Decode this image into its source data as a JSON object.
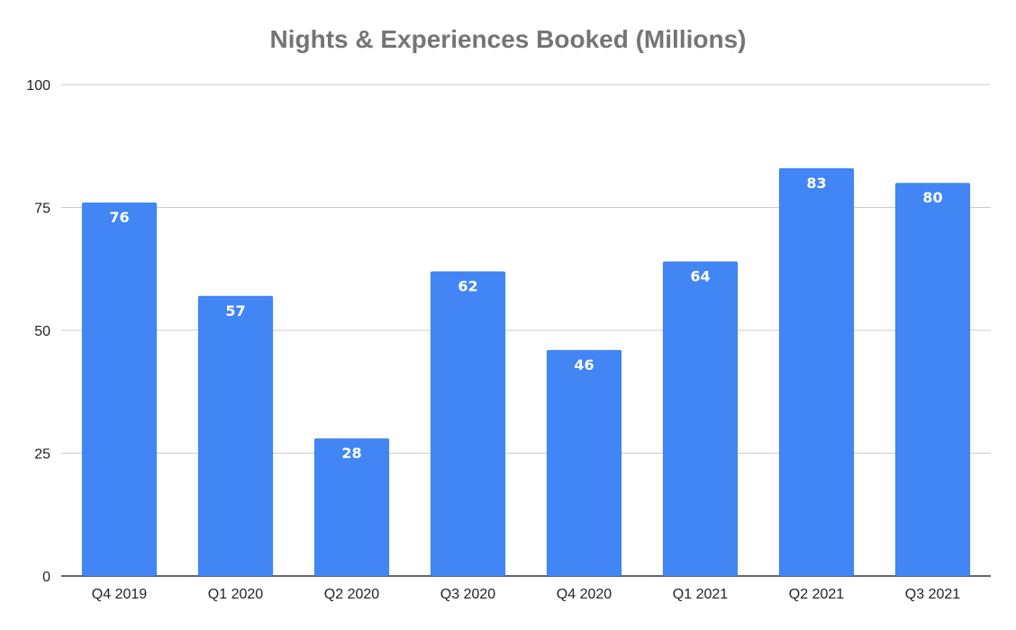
{
  "chart_data": {
    "type": "bar",
    "title": "Nights & Experiences Booked (Millions)",
    "xlabel": "",
    "ylabel": "",
    "categories": [
      "Q4 2019",
      "Q1 2020",
      "Q2 2020",
      "Q3 2020",
      "Q4 2020",
      "Q1 2021",
      "Q2 2021",
      "Q3 2021"
    ],
    "values": [
      76,
      57,
      28,
      62,
      46,
      64,
      83,
      80
    ],
    "data_labels": [
      "76",
      "57",
      "28",
      "62",
      "46",
      "64",
      "83",
      "80"
    ],
    "ylim": [
      0,
      100
    ],
    "yticks": [
      0,
      25,
      50,
      75,
      100
    ],
    "ytick_labels": [
      "0",
      "25",
      "50",
      "75",
      "100"
    ],
    "grid": true,
    "legend": "none",
    "colors": {
      "bar": "#4285f4",
      "grid": "#cccccc",
      "axis": "#333333",
      "title": "#757575"
    }
  }
}
